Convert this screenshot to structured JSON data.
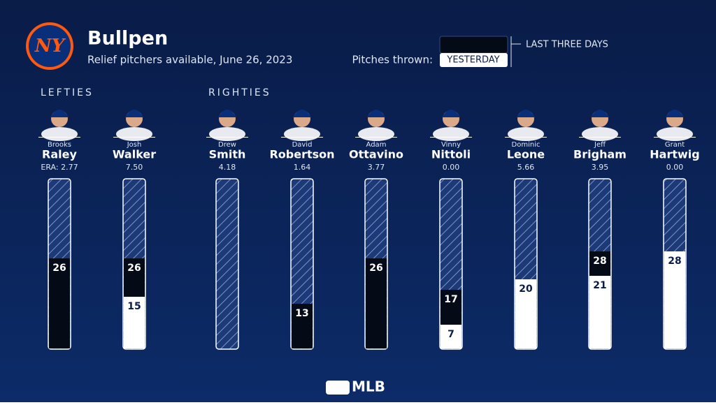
{
  "chart_data": {
    "type": "bar",
    "logo": "NY",
    "title": "Bullpen",
    "subtitle": "Relief pitchers available, June 26, 2023",
    "legend_title": "Pitches thrown:",
    "groups": [
      "LEFTIES",
      "RIGHTIES"
    ],
    "first_names": [
      "Brooks",
      "Josh",
      "Drew",
      "David",
      "Adam",
      "Vinny",
      "Dominic",
      "Jeff",
      "Grant"
    ],
    "categories": [
      "Raley",
      "Walker",
      "Smith",
      "Robertson",
      "Ottavino",
      "Nittoli",
      "Leone",
      "Brigham",
      "Hartwig"
    ],
    "stats": [
      "ERA: 2.77",
      "7.50",
      "4.18",
      "1.64",
      "3.77",
      "0.00",
      "5.66",
      "3.95",
      "0.00"
    ],
    "series": [
      {
        "name": "LAST THREE DAYS",
        "color": "#050a17",
        "values": [
          26,
          26,
          null,
          13,
          26,
          17,
          null,
          28,
          null
        ]
      },
      {
        "name": "YESTERDAY",
        "color": "#ffffff",
        "values": [
          null,
          15,
          null,
          null,
          null,
          7,
          20,
          21,
          28
        ]
      }
    ],
    "footer": "MLB"
  }
}
